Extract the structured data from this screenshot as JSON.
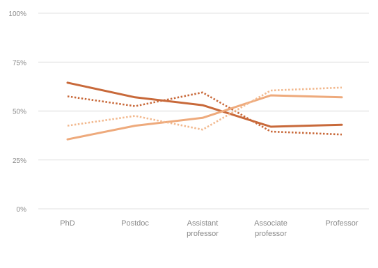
{
  "chart_data": {
    "type": "line",
    "title": "",
    "xlabel": "",
    "ylabel": "",
    "categories": [
      "PhD",
      "Postdoc",
      "Assistant professor",
      "Associate professor",
      "Professor"
    ],
    "category_lines": [
      [
        "PhD"
      ],
      [
        "Postdoc"
      ],
      [
        "Assistant",
        "professor"
      ],
      [
        "Associate",
        "professor"
      ],
      [
        "Professor"
      ]
    ],
    "ylim": [
      0,
      100
    ],
    "yticks": [
      0,
      25,
      50,
      75,
      100
    ],
    "ytick_labels": [
      "0%",
      "25%",
      "50%",
      "75%",
      "100%"
    ],
    "grid": true,
    "legend": false,
    "series": [
      {
        "values": [
          64.5,
          57,
          53,
          42,
          43
        ],
        "color": "#c8693a",
        "style": "solid"
      },
      {
        "values": [
          57.5,
          52.5,
          59.5,
          39.5,
          38
        ],
        "color": "#c8693a",
        "style": "dotted"
      },
      {
        "values": [
          35.5,
          42.5,
          46.5,
          58,
          57
        ],
        "color": "#eeaa7c",
        "style": "solid"
      },
      {
        "values": [
          42.5,
          47.5,
          40.5,
          60.5,
          62
        ],
        "color": "#f2b98f",
        "style": "dotted"
      }
    ]
  }
}
